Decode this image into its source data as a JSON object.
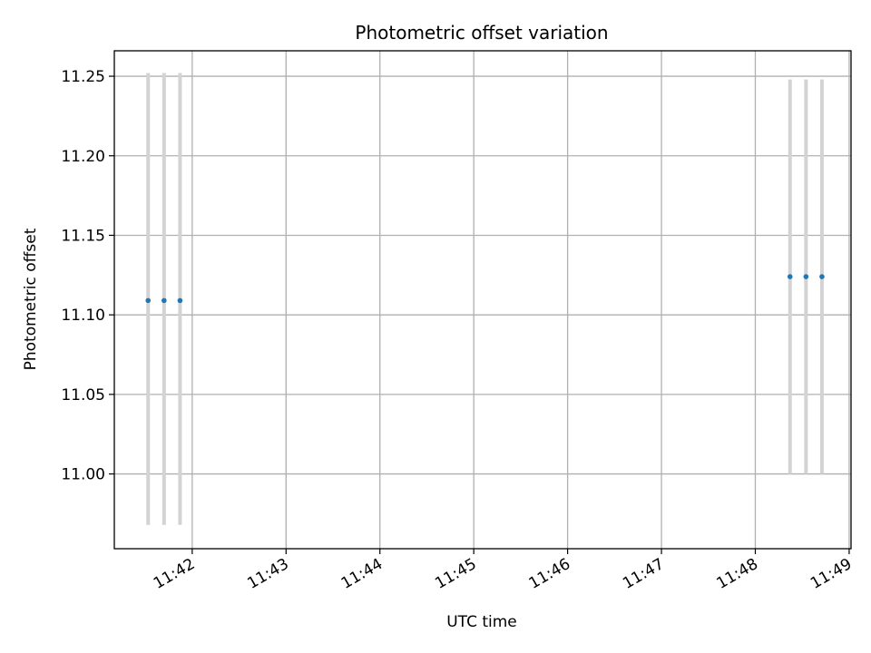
{
  "chart_data": {
    "type": "scatter",
    "title": "Photometric offset variation",
    "xlabel": "UTC time",
    "ylabel": "Photometric offset",
    "x_tick_labels": [
      "11:42",
      "11:43",
      "11:44",
      "11:45",
      "11:46",
      "11:47",
      "11:48",
      "11:49"
    ],
    "x_ticks_minutes": [
      702,
      703,
      704,
      705,
      706,
      707,
      708,
      709
    ],
    "y_ticks": [
      11.0,
      11.05,
      11.1,
      11.15,
      11.2,
      11.25
    ],
    "y_tick_labels": [
      "11.00",
      "11.05",
      "11.10",
      "11.15",
      "11.20",
      "11.25"
    ],
    "xlim_minutes": [
      701.17,
      709.02
    ],
    "ylim": [
      10.953,
      11.266
    ],
    "grid": true,
    "series": [
      {
        "points": [
          {
            "x": 701.53,
            "y": 11.109,
            "low": 10.968,
            "high": 11.252
          },
          {
            "x": 701.7,
            "y": 11.109,
            "low": 10.968,
            "high": 11.252
          },
          {
            "x": 701.87,
            "y": 11.109,
            "low": 10.968,
            "high": 11.252
          },
          {
            "x": 708.37,
            "y": 11.124,
            "low": 11.0,
            "high": 11.248
          },
          {
            "x": 708.54,
            "y": 11.124,
            "low": 11.0,
            "high": 11.248
          },
          {
            "x": 708.71,
            "y": 11.124,
            "low": 11.0,
            "high": 11.248
          }
        ]
      }
    ],
    "colors": {
      "marker": "#1f77b4",
      "errorbar": "#d3d3d3",
      "grid": "#b0b0b0"
    }
  }
}
